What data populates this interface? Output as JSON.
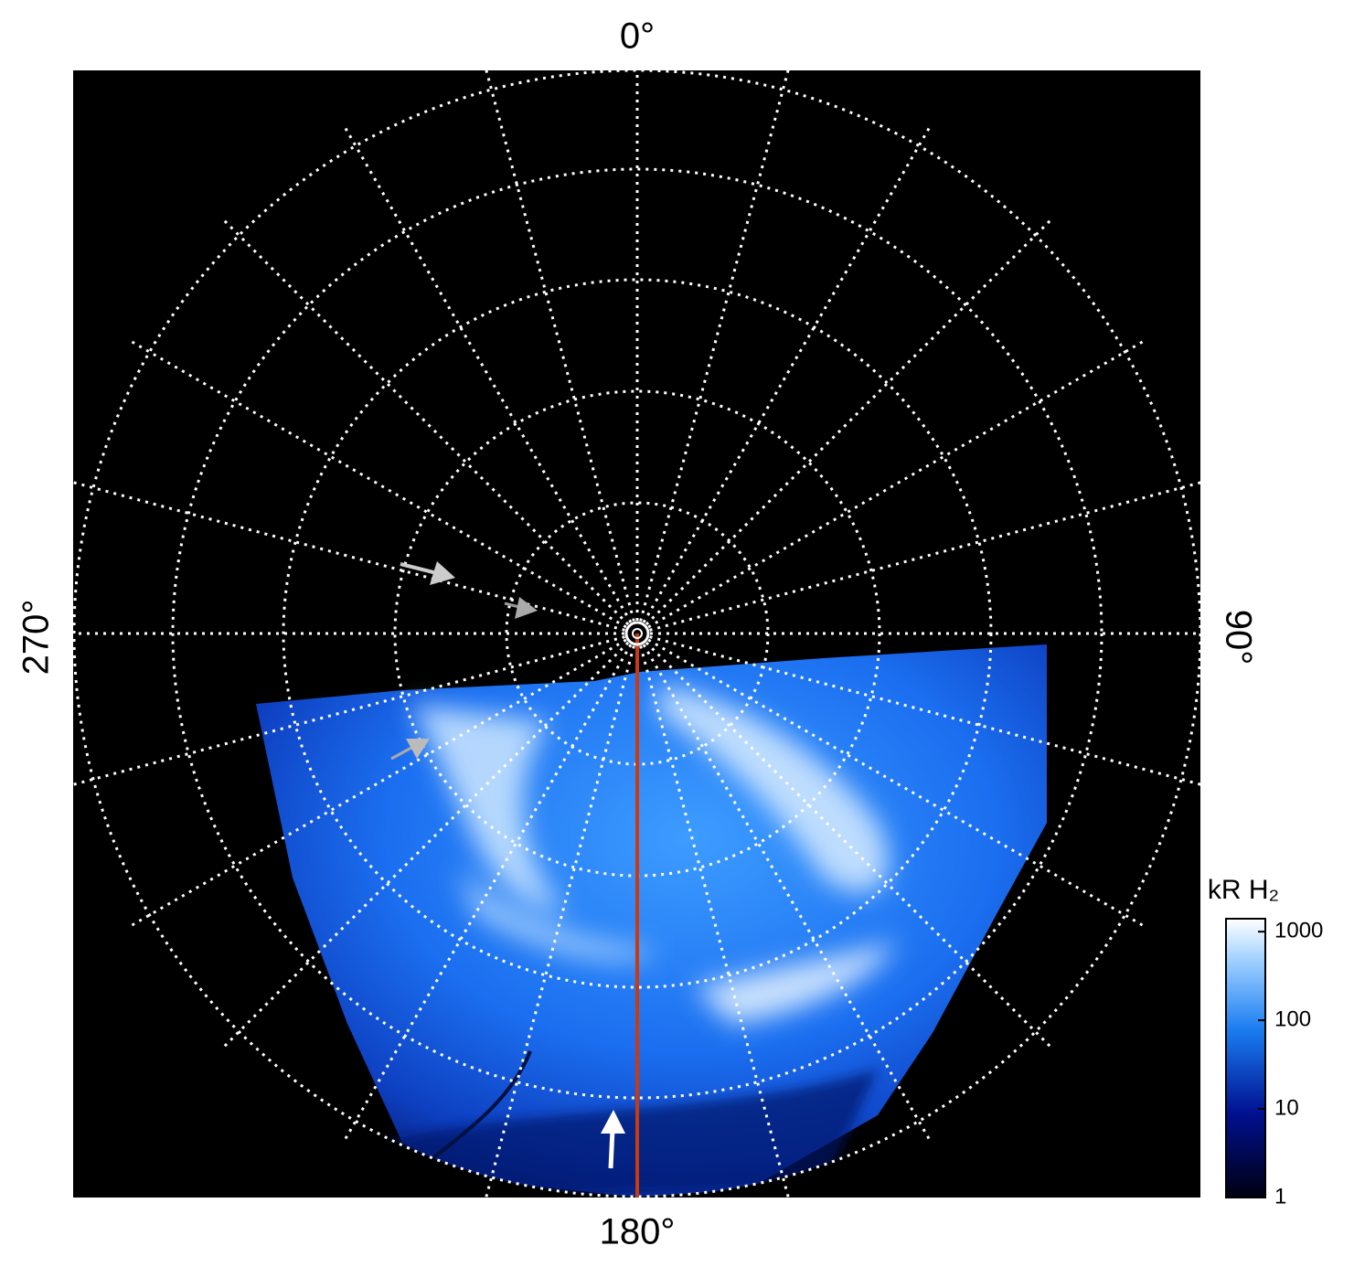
{
  "figure": {
    "axis_labels": {
      "top": "0°",
      "right": "90°",
      "bottom": "180°",
      "left": "270°"
    },
    "colorbar": {
      "title": "kR H₂",
      "scale": "log",
      "lim": [
        1,
        1400
      ],
      "ticks": [
        1,
        10,
        100,
        1000
      ]
    }
  }
}
